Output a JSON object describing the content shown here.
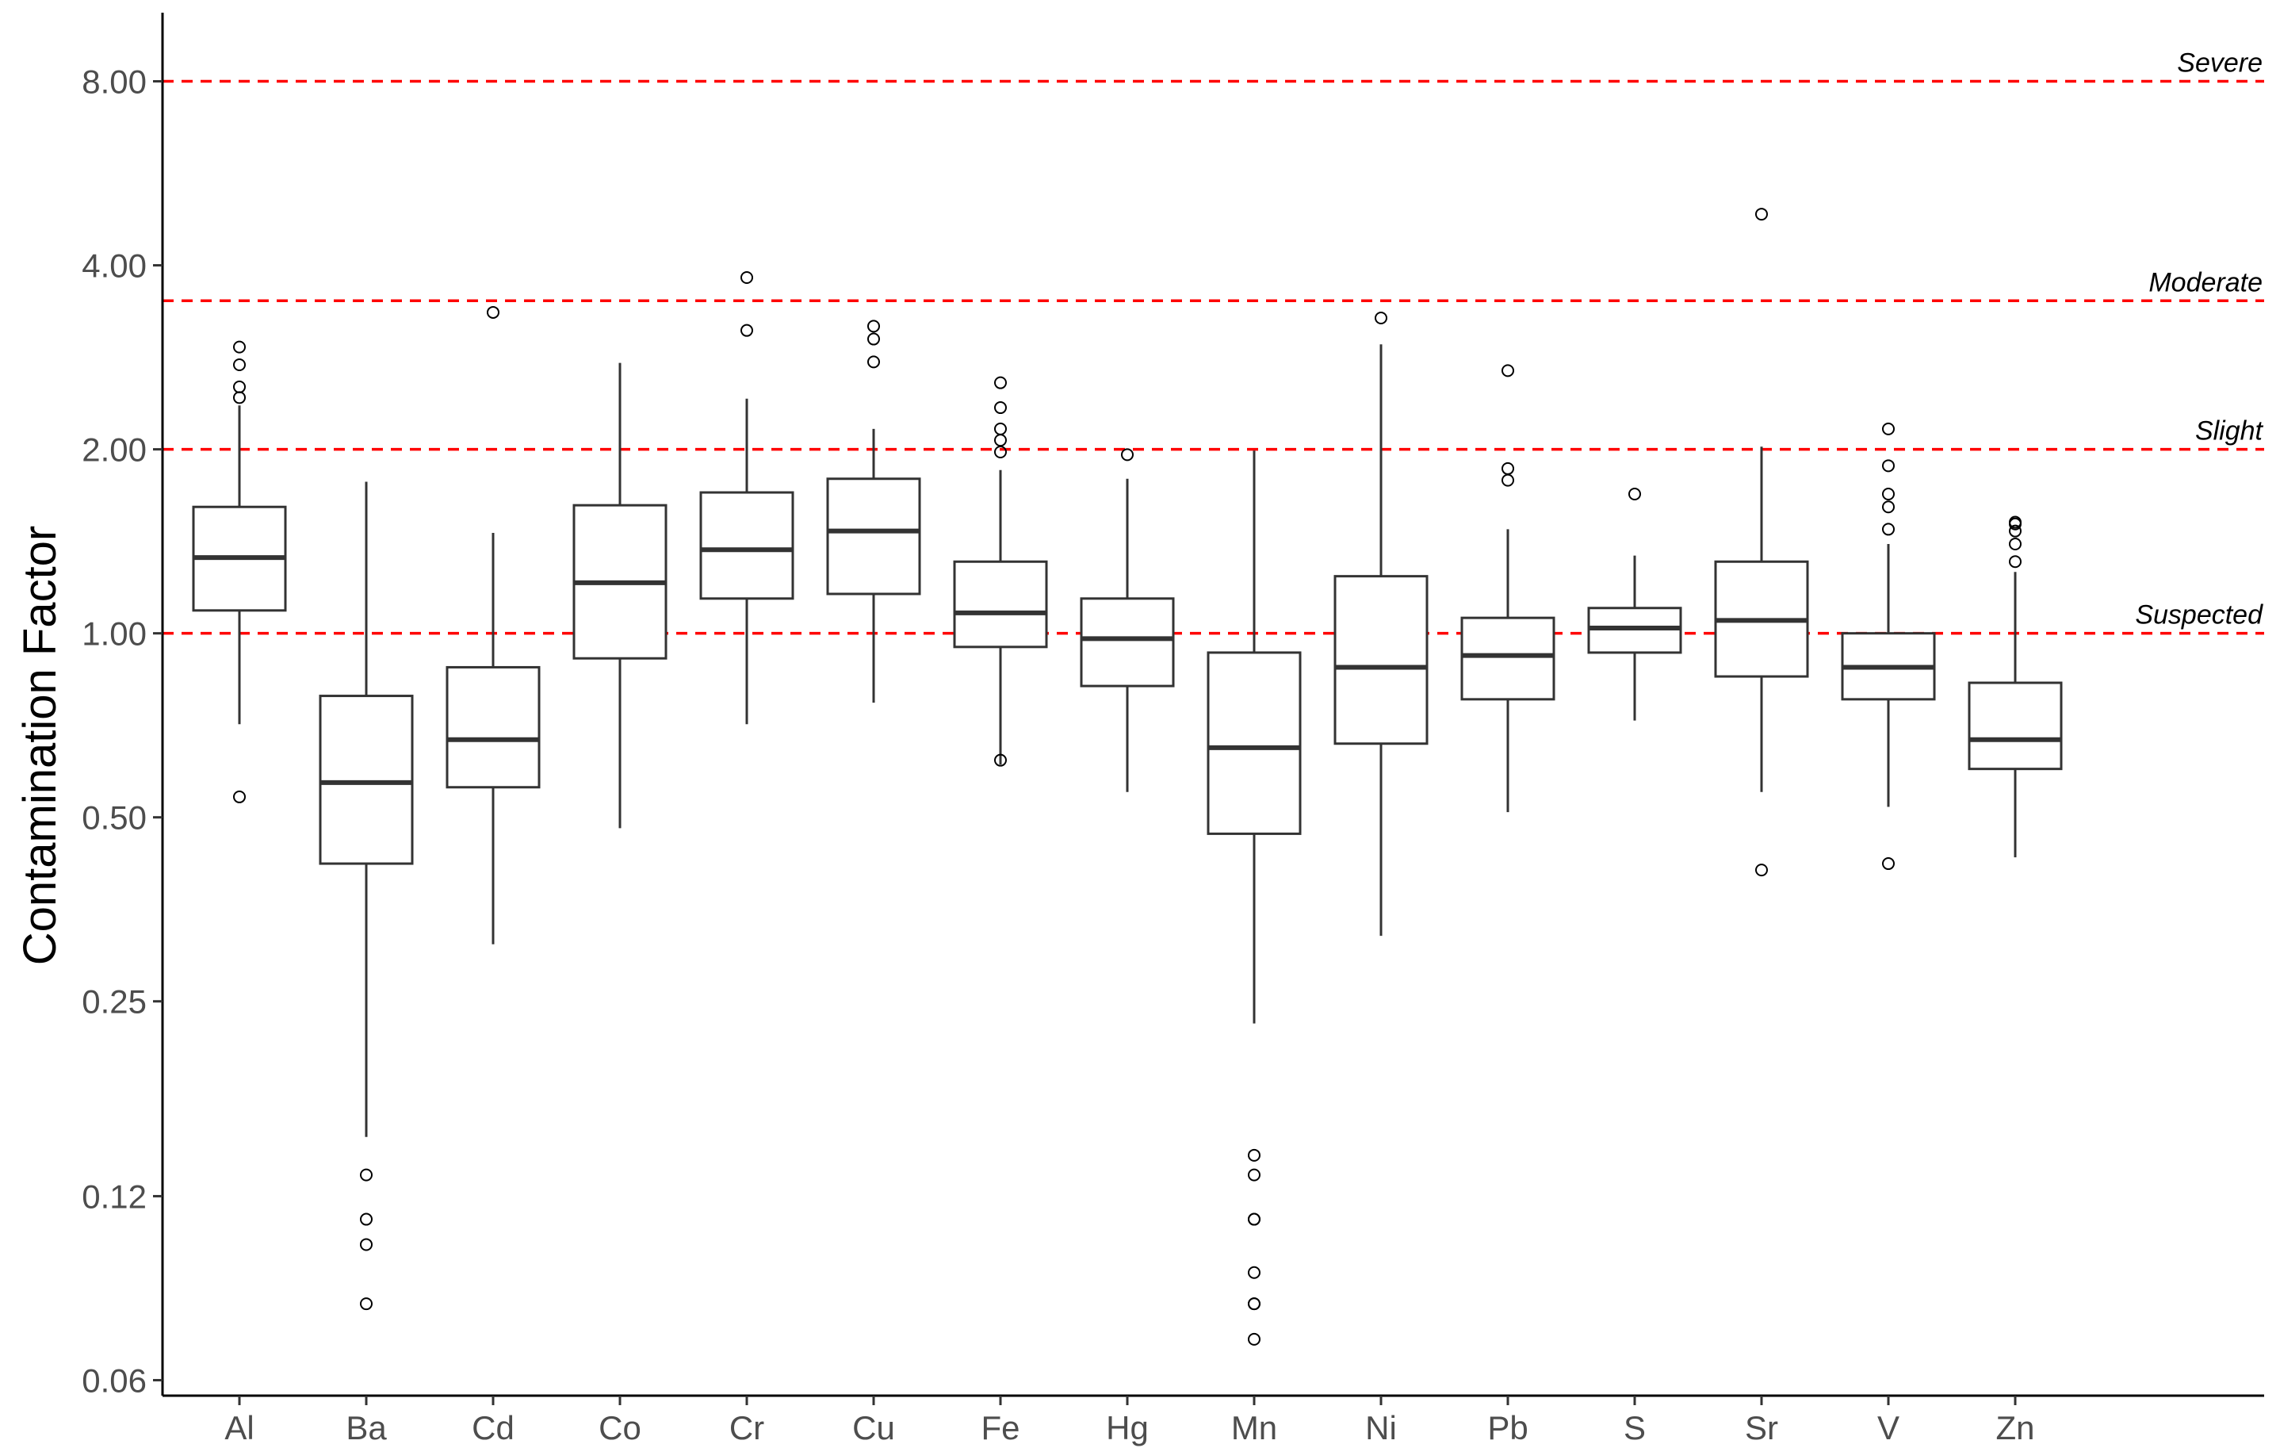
{
  "chart_data": {
    "type": "box",
    "xlabel": "",
    "ylabel": "Contamination Factor",
    "y_scale": "log2",
    "ylim": [
      0.0566,
      10.36
    ],
    "y_ticks": [
      0.06,
      0.12,
      0.25,
      0.5,
      1.0,
      2.0,
      4.0,
      8.0
    ],
    "y_tick_labels": [
      "0.06",
      "0.12",
      "0.25",
      "0.50",
      "1.00",
      "2.00",
      "4.00",
      "8.00"
    ],
    "grid": false,
    "categories": [
      "Al",
      "Ba",
      "Cd",
      "Co",
      "Cr",
      "Cu",
      "Fe",
      "Hg",
      "Mn",
      "Ni",
      "Pb",
      "S",
      "Sr",
      "V",
      "Zn"
    ],
    "boxes": [
      {
        "label": "Al",
        "whisker_low": 0.71,
        "q1": 1.09,
        "median": 1.33,
        "q3": 1.61,
        "whisker_high": 2.36,
        "outliers": [
          0.54,
          2.43,
          2.53,
          2.75,
          2.94
        ]
      },
      {
        "label": "Ba",
        "whisker_low": 0.15,
        "q1": 0.42,
        "median": 0.57,
        "q3": 0.79,
        "whisker_high": 1.77,
        "outliers": [
          0.08,
          0.1,
          0.11,
          0.13
        ]
      },
      {
        "label": "Cd",
        "whisker_low": 0.31,
        "q1": 0.56,
        "median": 0.67,
        "q3": 0.88,
        "whisker_high": 1.46,
        "outliers": [
          3.35
        ]
      },
      {
        "label": "Co",
        "whisker_low": 0.48,
        "q1": 0.91,
        "median": 1.21,
        "q3": 1.62,
        "whisker_high": 2.77,
        "outliers": []
      },
      {
        "label": "Cr",
        "whisker_low": 0.71,
        "q1": 1.14,
        "median": 1.37,
        "q3": 1.7,
        "whisker_high": 2.42,
        "outliers": [
          3.13,
          3.82
        ]
      },
      {
        "label": "Cu",
        "whisker_low": 0.77,
        "q1": 1.16,
        "median": 1.47,
        "q3": 1.79,
        "whisker_high": 2.16,
        "outliers": [
          2.78,
          3.03,
          3.18
        ]
      },
      {
        "label": "Fe",
        "whisker_low": 0.61,
        "q1": 0.95,
        "median": 1.08,
        "q3": 1.31,
        "whisker_high": 1.85,
        "outliers": [
          0.62,
          1.98,
          2.07,
          2.16,
          2.34,
          2.57
        ]
      },
      {
        "label": "Hg",
        "whisker_low": 0.55,
        "q1": 0.82,
        "median": 0.98,
        "q3": 1.14,
        "whisker_high": 1.79,
        "outliers": [
          1.96
        ]
      },
      {
        "label": "Mn",
        "whisker_low": 0.23,
        "q1": 0.47,
        "median": 0.65,
        "q3": 0.93,
        "whisker_high": 1.99,
        "outliers": [
          0.07,
          0.08,
          0.08,
          0.09,
          0.11,
          0.11,
          0.13,
          0.14
        ]
      },
      {
        "label": "Ni",
        "whisker_low": 0.32,
        "q1": 0.66,
        "median": 0.88,
        "q3": 1.24,
        "whisker_high": 2.97,
        "outliers": [
          3.28
        ]
      },
      {
        "label": "Pb",
        "whisker_low": 0.51,
        "q1": 0.78,
        "median": 0.92,
        "q3": 1.06,
        "whisker_high": 1.48,
        "outliers": [
          1.78,
          1.86,
          2.69
        ]
      },
      {
        "label": "S",
        "whisker_low": 0.72,
        "q1": 0.93,
        "median": 1.02,
        "q3": 1.1,
        "whisker_high": 1.34,
        "outliers": [
          1.69
        ]
      },
      {
        "label": "Sr",
        "whisker_low": 0.55,
        "q1": 0.85,
        "median": 1.05,
        "q3": 1.31,
        "whisker_high": 2.02,
        "outliers": [
          0.41,
          4.85
        ]
      },
      {
        "label": "V",
        "whisker_low": 0.52,
        "q1": 0.78,
        "median": 0.88,
        "q3": 1.0,
        "whisker_high": 1.4,
        "outliers": [
          0.42,
          1.48,
          1.61,
          1.69,
          1.88,
          2.16
        ]
      },
      {
        "label": "Zn",
        "whisker_low": 0.43,
        "q1": 0.6,
        "median": 0.67,
        "q3": 0.83,
        "whisker_high": 1.26,
        "outliers": [
          1.31,
          1.4,
          1.47,
          1.51,
          1.52
        ]
      }
    ],
    "reference_lines": [
      {
        "label": "Severe",
        "value": 8.0,
        "color": "#ff0000"
      },
      {
        "label": "Moderate",
        "value": 3.5,
        "color": "#ff0000"
      },
      {
        "label": "Slight",
        "value": 2.0,
        "color": "#ff0000"
      },
      {
        "label": "Suspected",
        "value": 1.0,
        "color": "#ff0000"
      }
    ]
  }
}
